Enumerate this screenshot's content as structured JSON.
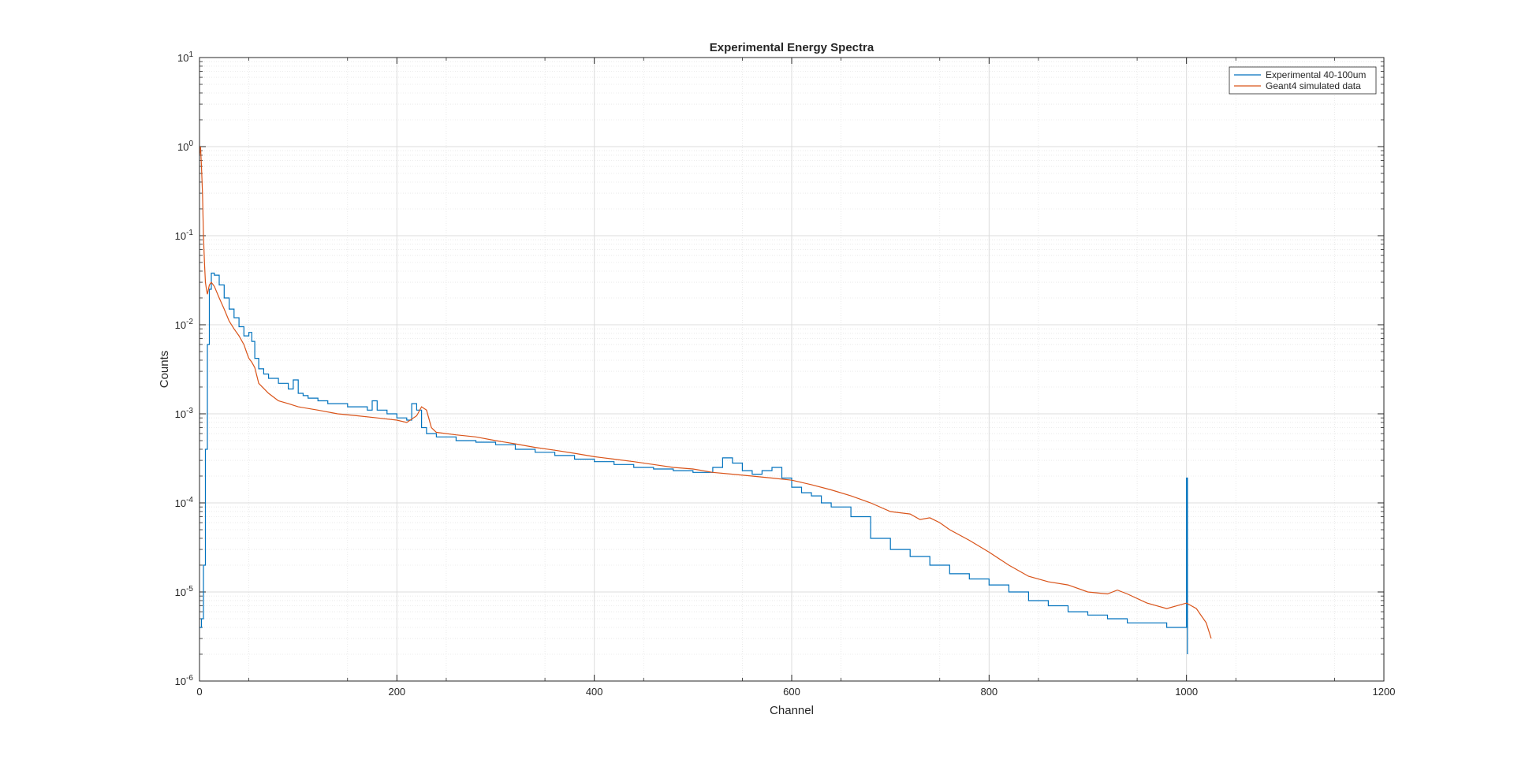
{
  "chart_data": {
    "type": "line",
    "title": "Experimental Energy Spectra",
    "xlabel": "Channel",
    "ylabel": "Counts",
    "xlim": [
      0,
      1200
    ],
    "ylim": [
      1e-06,
      10
    ],
    "yscale": "log",
    "grid": true,
    "minor_grid": true,
    "legend_position": "top-right",
    "x_ticks": [
      0,
      200,
      400,
      600,
      800,
      1000,
      1200
    ],
    "x_tick_labels": [
      "0",
      "200",
      "400",
      "600",
      "800",
      "1000",
      "1200"
    ],
    "y_ticks": [
      {
        "value": 1e-06,
        "base": "10",
        "exp": "-6"
      },
      {
        "value": 1e-05,
        "base": "10",
        "exp": "-5"
      },
      {
        "value": 0.0001,
        "base": "10",
        "exp": "-4"
      },
      {
        "value": 0.001,
        "base": "10",
        "exp": "-3"
      },
      {
        "value": 0.01,
        "base": "10",
        "exp": "-2"
      },
      {
        "value": 0.1,
        "base": "10",
        "exp": "-1"
      },
      {
        "value": 1,
        "base": "10",
        "exp": "0"
      },
      {
        "value": 10,
        "base": "10",
        "exp": "1"
      }
    ],
    "series": [
      {
        "name": "Experimental 40-100um",
        "color": "#0072BD",
        "style": "stairs",
        "x": [
          0,
          2,
          4,
          6,
          8,
          10,
          12,
          15,
          20,
          25,
          30,
          35,
          40,
          45,
          50,
          53,
          56,
          60,
          65,
          70,
          80,
          90,
          95,
          100,
          105,
          110,
          120,
          130,
          150,
          170,
          175,
          180,
          190,
          200,
          210,
          215,
          220,
          225,
          230,
          240,
          260,
          280,
          300,
          320,
          340,
          360,
          380,
          400,
          420,
          440,
          460,
          480,
          500,
          520,
          530,
          540,
          550,
          560,
          570,
          580,
          590,
          600,
          610,
          620,
          630,
          640,
          660,
          680,
          700,
          720,
          740,
          760,
          780,
          800,
          820,
          840,
          860,
          880,
          900,
          920,
          940,
          960,
          980,
          1000,
          1001
        ],
        "y": [
          4e-06,
          5e-06,
          2e-05,
          0.0004,
          0.006,
          0.025,
          0.038,
          0.036,
          0.028,
          0.02,
          0.015,
          0.012,
          0.0095,
          0.0075,
          0.0082,
          0.0065,
          0.0042,
          0.0032,
          0.0028,
          0.0025,
          0.0022,
          0.0019,
          0.0024,
          0.0017,
          0.0016,
          0.0015,
          0.0014,
          0.0013,
          0.0012,
          0.0011,
          0.0014,
          0.0011,
          0.001,
          0.0009,
          0.00085,
          0.0013,
          0.0011,
          0.0007,
          0.0006,
          0.00055,
          0.0005,
          0.00048,
          0.00045,
          0.0004,
          0.00037,
          0.00034,
          0.00031,
          0.00029,
          0.00027,
          0.00025,
          0.00024,
          0.00023,
          0.00022,
          0.00025,
          0.00032,
          0.00028,
          0.00023,
          0.00021,
          0.00023,
          0.00025,
          0.00019,
          0.00015,
          0.00013,
          0.00012,
          0.0001,
          9e-05,
          7e-05,
          4e-05,
          3e-05,
          2.5e-05,
          2e-05,
          1.6e-05,
          1.4e-05,
          1.2e-05,
          1e-05,
          8e-06,
          7e-06,
          6e-06,
          5.5e-06,
          5e-06,
          4.5e-06,
          4.5e-06,
          4e-06,
          0.00019,
          2e-06
        ]
      },
      {
        "name": "Geant4 simulated data",
        "color": "#D95319",
        "style": "line",
        "x": [
          0,
          1,
          2,
          3,
          4,
          5,
          6,
          7,
          8,
          10,
          12,
          15,
          20,
          25,
          30,
          35,
          40,
          45,
          48,
          50,
          53,
          56,
          60,
          70,
          80,
          90,
          100,
          120,
          140,
          160,
          180,
          200,
          210,
          220,
          225,
          230,
          235,
          240,
          260,
          280,
          300,
          320,
          340,
          360,
          380,
          400,
          420,
          440,
          460,
          480,
          500,
          520,
          540,
          560,
          580,
          600,
          620,
          640,
          660,
          680,
          700,
          720,
          730,
          740,
          750,
          760,
          780,
          800,
          820,
          840,
          860,
          880,
          900,
          920,
          930,
          940,
          960,
          980,
          1000,
          1010,
          1020,
          1025
        ],
        "y": [
          0.8,
          1.0,
          0.6,
          0.3,
          0.1,
          0.05,
          0.03,
          0.025,
          0.022,
          0.028,
          0.03,
          0.027,
          0.02,
          0.015,
          0.011,
          0.009,
          0.0075,
          0.006,
          0.0048,
          0.0042,
          0.0038,
          0.0033,
          0.0022,
          0.0017,
          0.0014,
          0.0013,
          0.0012,
          0.0011,
          0.001,
          0.00095,
          0.0009,
          0.00085,
          0.0008,
          0.00095,
          0.0012,
          0.0011,
          0.0007,
          0.00062,
          0.00058,
          0.00055,
          0.0005,
          0.00046,
          0.00042,
          0.00039,
          0.00036,
          0.00033,
          0.00031,
          0.00029,
          0.00027,
          0.00025,
          0.00024,
          0.00022,
          0.00021,
          0.0002,
          0.00019,
          0.00018,
          0.00016,
          0.00014,
          0.00012,
          0.0001,
          8e-05,
          7.5e-05,
          6.5e-05,
          6.8e-05,
          6e-05,
          5e-05,
          3.8e-05,
          2.8e-05,
          2e-05,
          1.5e-05,
          1.3e-05,
          1.2e-05,
          1e-05,
          9.5e-06,
          1.05e-05,
          9.5e-06,
          7.5e-06,
          6.5e-06,
          7.5e-06,
          6.5e-06,
          4.5e-06,
          3e-06
        ]
      }
    ]
  }
}
